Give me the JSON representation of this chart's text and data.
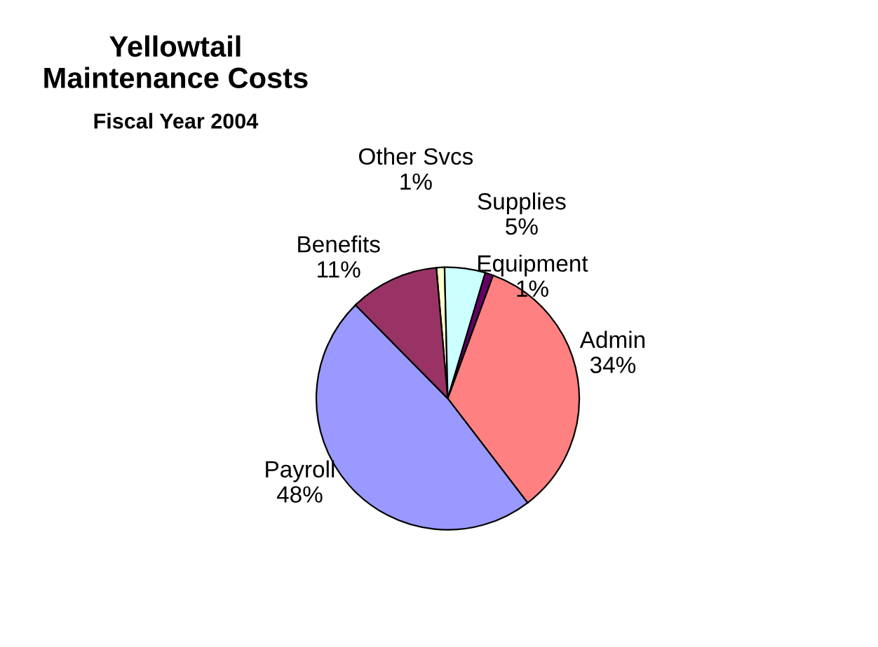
{
  "chart_data": {
    "type": "pie",
    "title": "Yellowtail\nMaintenance Costs",
    "subtitle": "Fiscal Year 2004",
    "categories": [
      "Other Svcs",
      "Supplies",
      "Equipment",
      "Admin",
      "Payroll",
      "Benefits"
    ],
    "values": [
      1,
      5,
      1,
      34,
      48,
      11
    ],
    "value_labels": [
      "1%",
      "5%",
      "1%",
      "34%",
      "48%",
      "11%"
    ],
    "colors": [
      "#ffffcc",
      "#ccffff",
      "#660066",
      "#ff8080",
      "#9999ff",
      "#993366"
    ],
    "legend": false
  }
}
